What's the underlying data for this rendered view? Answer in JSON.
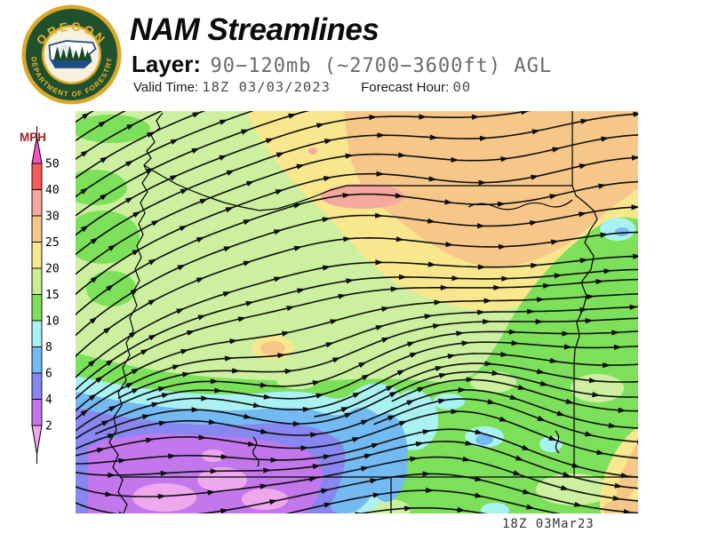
{
  "header": {
    "title": "NAM Streamlines",
    "layer_label": "Layer:",
    "layer_value": "90−120mb (~2700−3600ft) AGL",
    "valid_label": "Valid Time:",
    "valid_value": "18Z 03/03/2023",
    "fh_label": "Forecast Hour:",
    "fh_value": "00",
    "logo_top": "OREGON",
    "logo_bottom": "DEPARTMENT OF FORESTRY"
  },
  "legend": {
    "units_label": "MPH",
    "units_color": "#a02424",
    "ticks": [
      "50",
      "40",
      "30",
      "25",
      "20",
      "15",
      "10",
      "8",
      "6",
      "4",
      "2"
    ],
    "band_colors": [
      "#f85c5c",
      "#f7a89e",
      "#f7c78a",
      "#f8e78c",
      "#c9ef92",
      "#7ce05a",
      "#a9f2f1",
      "#74baf2",
      "#8886f0",
      "#c377ec"
    ],
    "above_color": "#fa54c8",
    "below_color": "#efa8e8"
  },
  "map": {
    "timestamp": "18Z 03Mar23",
    "stream_color": "#0d0d0d",
    "border_color": "#000000",
    "speed_colors": {
      "s_gt50": "#fa54c8",
      "s40_50": "#f85c5c",
      "s30_40": "#f7a89e",
      "s25_30": "#f7c78a",
      "s20_25": "#f8e78c",
      "s15_20": "#ccf0a0",
      "s10_15": "#7ce05a",
      "s8_10": "#a9f2f1",
      "s6_8": "#74baf2",
      "s4_6": "#8886f0",
      "s2_4": "#c377ec",
      "s_lt2": "#efa8ee"
    }
  }
}
